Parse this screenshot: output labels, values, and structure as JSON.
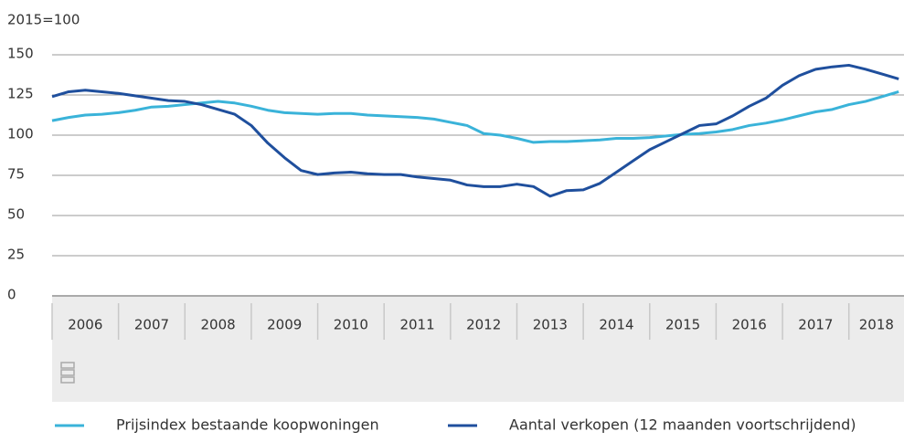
{
  "chart_data": {
    "type": "line",
    "y_label": "2015=100",
    "x": [
      2006,
      2006.25,
      2006.5,
      2006.75,
      2007,
      2007.25,
      2007.5,
      2007.75,
      2008,
      2008.25,
      2008.5,
      2008.75,
      2009,
      2009.25,
      2009.5,
      2009.75,
      2010,
      2010.25,
      2010.5,
      2010.75,
      2011,
      2011.25,
      2011.5,
      2011.75,
      2012,
      2012.25,
      2012.5,
      2012.75,
      2013,
      2013.25,
      2013.5,
      2013.75,
      2014,
      2014.25,
      2014.5,
      2014.75,
      2015,
      2015.25,
      2015.5,
      2015.75,
      2016,
      2016.25,
      2016.5,
      2016.75,
      2017,
      2017.25,
      2017.5,
      2017.75,
      2018,
      2018.25,
      2018.5,
      2018.75
    ],
    "series": [
      {
        "name": "Prijsindex bestaande koopwoningen",
        "color": "#3ab3d9",
        "values": [
          109,
          111,
          112.5,
          113,
          114,
          115.5,
          117.5,
          118,
          119,
          120,
          121,
          120,
          118,
          115.5,
          114,
          113.5,
          113,
          113.5,
          113.5,
          112.5,
          112,
          111.5,
          111,
          110,
          108,
          106,
          101,
          100,
          98,
          95.5,
          96,
          96,
          96.5,
          97,
          98,
          98,
          98.5,
          99.5,
          100.5,
          101,
          102,
          103.5,
          106,
          107.5,
          109.5,
          112,
          114.5,
          116,
          119,
          121,
          124,
          127
        ]
      },
      {
        "name": "Aantal verkopen (12 maanden voortschrijdend)",
        "color": "#1f4f9d",
        "values": [
          124,
          127,
          128,
          127,
          126,
          124.5,
          123,
          121.5,
          121,
          119,
          116,
          113,
          106,
          95,
          86,
          78,
          75.5,
          76.5,
          77,
          76,
          75.5,
          75.5,
          74,
          73,
          72,
          69,
          68,
          68,
          69.5,
          68,
          62,
          65.5,
          66,
          70,
          77,
          84,
          91,
          96,
          101,
          106,
          107,
          112,
          118,
          123,
          131,
          137,
          141,
          142.5,
          143.5,
          141,
          138,
          135
        ]
      }
    ],
    "xlim": [
      2006,
      2018.83
    ],
    "xticks": [
      2006,
      2007,
      2008,
      2009,
      2010,
      2011,
      2012,
      2013,
      2014,
      2015,
      2016,
      2017,
      2018
    ],
    "ylim": [
      0,
      150
    ],
    "yticks": [
      0,
      25,
      50,
      75,
      100,
      125,
      150
    ],
    "grid": true
  }
}
